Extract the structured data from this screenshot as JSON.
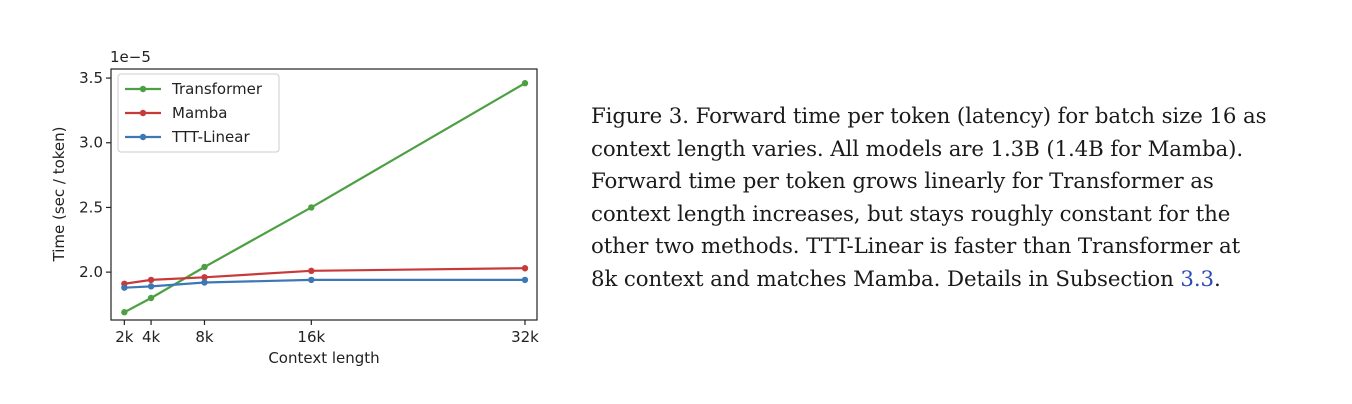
{
  "chart_data": {
    "type": "line",
    "x": [
      2,
      4,
      8,
      16,
      32
    ],
    "xticks": [
      2,
      4,
      8,
      16,
      32
    ],
    "xtick_labels": [
      "2k",
      "4k",
      "8k",
      "16k",
      "32k"
    ],
    "xlabel": "Context length",
    "ylabel": "Time (sec / token)",
    "ylim": [
      1.63,
      3.57
    ],
    "yticks": [
      2.0,
      2.5,
      3.0,
      3.5
    ],
    "ytick_labels": [
      "2.0",
      "2.5",
      "3.0",
      "3.5"
    ],
    "y_scale_label": "1e−5",
    "grid": false,
    "legend_position": "upper-left",
    "series": [
      {
        "name": "Transformer",
        "color": "#4ca043",
        "values": [
          1.69,
          1.8,
          2.04,
          2.5,
          3.46
        ]
      },
      {
        "name": "Mamba",
        "color": "#c83a3a",
        "values": [
          1.91,
          1.94,
          1.96,
          2.01,
          2.03
        ]
      },
      {
        "name": "TTT-Linear",
        "color": "#3d77b6",
        "values": [
          1.88,
          1.89,
          1.92,
          1.94,
          1.94
        ]
      }
    ]
  },
  "caption": {
    "lines": [
      "Figure 3. Forward time per token (latency) for batch size 16 as",
      "context length varies. All models are 1.3B (1.4B for Mamba).",
      "Forward time per token grows linearly for Transformer as",
      "context length increases, but stays roughly constant for the",
      "other two methods. TTT-Linear is faster than Transformer at",
      "8k context and matches Mamba. Details in Subsection "
    ],
    "link_text": "3.3",
    "trailing": "."
  }
}
